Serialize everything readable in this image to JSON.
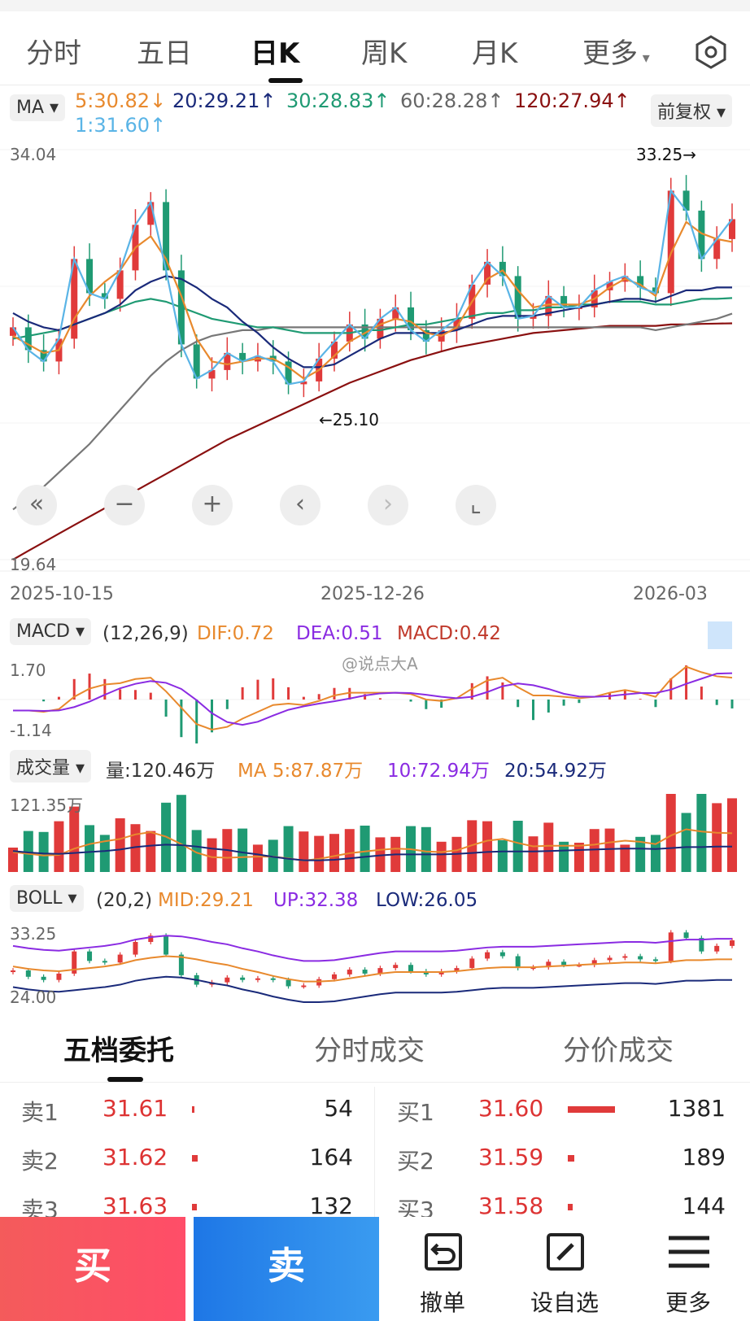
{
  "period_tabs": [
    "分时",
    "五日",
    "日K",
    "周K",
    "月K",
    "更多"
  ],
  "period_active": 2,
  "ma_header": {
    "selector": "MA",
    "adjust": "前复权",
    "items": [
      {
        "label": "5:30.82↓",
        "color": "#e8892d"
      },
      {
        "label": "20:29.21↑",
        "color": "#1a2a7a"
      },
      {
        "label": "30:28.83↑",
        "color": "#1f9a73"
      },
      {
        "label": "60:28.28↑",
        "color": "#666666"
      },
      {
        "label": "120:27.94↑",
        "color": "#8a1010"
      },
      {
        "label": "1:31.60↑",
        "color": "#5ab4e6"
      }
    ]
  },
  "price_axis": {
    "top": "34.04",
    "bottom": "19.64",
    "high_mark": "33.25→",
    "low_mark": "←25.10"
  },
  "date_labels": [
    "2025-10-15",
    "2025-12-26",
    "2026-03"
  ],
  "zoom_controls": [
    "«",
    "−",
    "+",
    "‹",
    "›",
    "⌞"
  ],
  "macd_header": {
    "selector": "MACD",
    "params": "(12,26,9)",
    "dif": "DIF:0.72",
    "dea": "DEA:0.51",
    "macd": "MACD:0.42",
    "axis_top": "1.70",
    "axis_bottom": "-1.14",
    "watermark": "@说点大A"
  },
  "volume_header": {
    "selector": "成交量",
    "vol": "量:120.46万",
    "ma5": "MA 5:87.87万",
    "ma10": "10:72.94万",
    "ma20": "20:54.92万",
    "axis_top": "121.35万"
  },
  "boll_header": {
    "selector": "BOLL",
    "params": "(20,2)",
    "mid": "MID:29.21",
    "up": "UP:32.38",
    "low": "LOW:26.05",
    "axis_top": "33.25",
    "axis_bottom": "24.00"
  },
  "section_tabs": [
    "五档委托",
    "分时成交",
    "分价成交"
  ],
  "order_book": {
    "asks": [
      {
        "label": "卖1",
        "price": "31.61",
        "vol": "54"
      },
      {
        "label": "卖2",
        "price": "31.62",
        "vol": "164"
      },
      {
        "label": "卖3",
        "price": "31.63",
        "vol": "132"
      }
    ],
    "bids": [
      {
        "label": "买1",
        "price": "31.60",
        "vol": "1381"
      },
      {
        "label": "买2",
        "price": "31.59",
        "vol": "189"
      },
      {
        "label": "买3",
        "price": "31.58",
        "vol": "144"
      }
    ]
  },
  "bottom_bar": {
    "buy": "买",
    "sell": "卖",
    "cancel": "撤单",
    "watchlist": "设自选",
    "more": "更多"
  },
  "colors": {
    "up": "#e03a3a",
    "down": "#1f9a73",
    "ma5": "#e8892d",
    "ma20": "#1a2a7a",
    "ma30": "#1f9a73",
    "ma60": "#777777",
    "ma120": "#8a1010",
    "ma1": "#5ab4e6",
    "dea": "#8a2be2"
  },
  "chart_data": {
    "type": "candlestick",
    "ylim": [
      19.64,
      34.04
    ],
    "ma_lines": {
      "ma1": [
        27.8,
        27.0,
        26.6,
        27.4,
        30.2,
        29.0,
        28.8,
        29.8,
        31.4,
        32.2,
        29.8,
        27.2,
        26.0,
        26.3,
        26.9,
        26.6,
        26.8,
        26.6,
        25.8,
        25.9,
        26.7,
        27.3,
        27.9,
        27.4,
        28.1,
        28.5,
        27.7,
        27.3,
        27.7,
        28.1,
        29.3,
        30.1,
        29.6,
        28.1,
        28.2,
        28.9,
        28.5,
        28.5,
        29.1,
        29.4,
        29.6,
        29.2,
        29.0,
        32.6,
        31.9,
        30.2,
        30.9,
        31.6
      ],
      "ma5": [
        27.5,
        27.2,
        26.9,
        27.0,
        28.1,
        28.9,
        29.4,
        29.8,
        30.6,
        31.0,
        30.2,
        28.9,
        27.4,
        26.6,
        26.5,
        26.6,
        26.7,
        26.7,
        26.4,
        26.0,
        26.3,
        26.8,
        27.3,
        27.6,
        27.9,
        28.1,
        28.0,
        27.6,
        27.5,
        27.8,
        28.7,
        29.5,
        29.8,
        29.1,
        28.5,
        28.6,
        28.6,
        28.6,
        28.8,
        29.2,
        29.5,
        29.3,
        28.9,
        30.4,
        31.5,
        31.1,
        30.9,
        30.8
      ],
      "ma20": [
        28.3,
        28.0,
        27.8,
        27.7,
        27.9,
        28.1,
        28.3,
        28.6,
        29.1,
        29.4,
        29.6,
        29.5,
        29.2,
        28.8,
        28.5,
        28.0,
        27.6,
        27.1,
        26.7,
        26.4,
        26.4,
        26.5,
        26.8,
        27.1,
        27.4,
        27.6,
        27.6,
        27.6,
        27.6,
        27.7,
        27.9,
        28.1,
        28.2,
        28.2,
        28.2,
        28.3,
        28.4,
        28.5,
        28.6,
        28.7,
        28.8,
        28.8,
        28.7,
        28.9,
        29.1,
        29.1,
        29.2,
        29.2
      ],
      "ma30": [
        27.4,
        27.5,
        27.6,
        27.7,
        27.9,
        28.1,
        28.3,
        28.5,
        28.7,
        28.8,
        28.7,
        28.5,
        28.3,
        28.1,
        28.0,
        27.9,
        27.8,
        27.8,
        27.7,
        27.6,
        27.6,
        27.6,
        27.6,
        27.7,
        27.7,
        27.8,
        27.9,
        27.9,
        28.0,
        28.1,
        28.2,
        28.3,
        28.3,
        28.4,
        28.4,
        28.5,
        28.5,
        28.6,
        28.6,
        28.7,
        28.7,
        28.7,
        28.6,
        28.6,
        28.7,
        28.8,
        28.8,
        28.83
      ],
      "ma60": [
        21.4,
        21.8,
        22.2,
        22.7,
        23.2,
        23.7,
        24.3,
        24.9,
        25.5,
        26.1,
        26.6,
        27.0,
        27.3,
        27.5,
        27.6,
        27.7,
        27.7,
        27.8,
        27.8,
        27.8,
        27.8,
        27.8,
        27.8,
        27.8,
        27.8,
        27.8,
        27.8,
        27.8,
        27.8,
        27.8,
        27.8,
        27.8,
        27.8,
        27.8,
        27.8,
        27.8,
        27.8,
        27.8,
        27.8,
        27.8,
        27.8,
        27.8,
        27.7,
        27.8,
        27.9,
        28.0,
        28.1,
        28.28
      ],
      "ma120": [
        19.64,
        19.95,
        20.25,
        20.55,
        20.85,
        21.15,
        21.45,
        21.75,
        22.05,
        22.35,
        22.65,
        22.95,
        23.25,
        23.55,
        23.85,
        24.1,
        24.35,
        24.6,
        24.85,
        25.1,
        25.35,
        25.6,
        25.85,
        26.05,
        26.25,
        26.45,
        26.65,
        26.8,
        26.95,
        27.1,
        27.2,
        27.3,
        27.4,
        27.5,
        27.6,
        27.65,
        27.7,
        27.75,
        27.8,
        27.85,
        27.85,
        27.85,
        27.85,
        27.9,
        27.9,
        27.92,
        27.93,
        27.94
      ]
    },
    "high": 33.25,
    "low": 25.1,
    "dates": [
      "2025-10-15",
      "2025-12-26",
      "2026-03"
    ]
  }
}
